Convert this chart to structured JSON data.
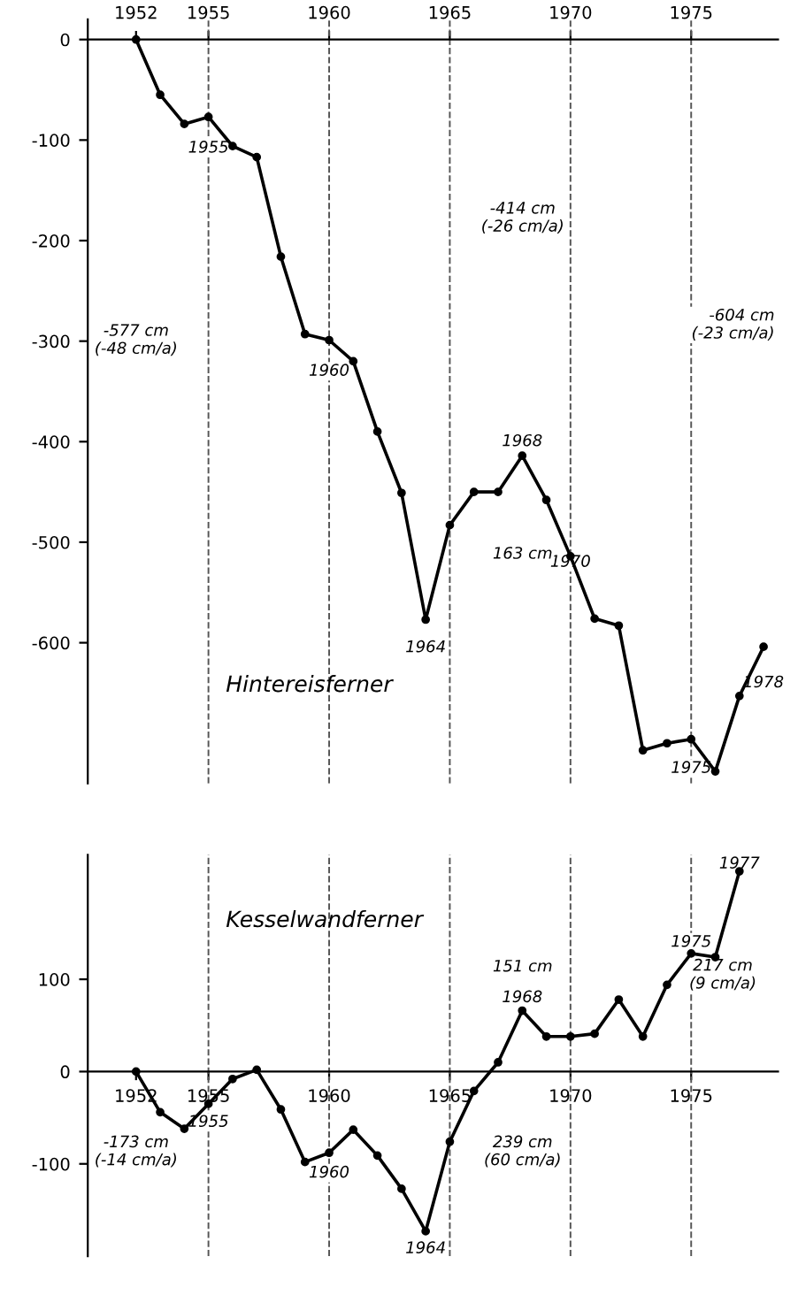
{
  "chart_data": [
    {
      "type": "line",
      "title": "Hintereisferner",
      "x": [
        1952,
        1953,
        1954,
        1955,
        1956,
        1957,
        1958,
        1959,
        1960,
        1961,
        1962,
        1963,
        1964,
        1965,
        1966,
        1967,
        1968,
        1969,
        1970,
        1971,
        1972,
        1973,
        1974,
        1975,
        1976,
        1977,
        1978
      ],
      "series": [
        {
          "color": "#000000",
          "values": [
            0,
            -55,
            -84,
            -77,
            -106,
            -117,
            -216,
            -293,
            -299,
            -320,
            -390,
            -451,
            -577,
            -483,
            -450,
            -450,
            -414,
            -458,
            -514,
            -576,
            -583,
            -707,
            -700,
            -696,
            -728,
            -653,
            -604
          ]
        }
      ],
      "xlim": [
        1950,
        1978.6
      ],
      "ylim": [
        -740,
        20
      ],
      "xticks": [
        1952,
        1955,
        1960,
        1965,
        1970,
        1975
      ],
      "yticks": [
        {
          "value": 0,
          "label": "0"
        },
        {
          "value": -100,
          "label": "-100"
        },
        {
          "value": -200,
          "label": "-200"
        },
        {
          "value": -300,
          "label": "-300"
        },
        {
          "value": -400,
          "label": "-400"
        },
        {
          "value": -500,
          "label": "-500"
        },
        {
          "value": -600,
          "label": "-600"
        }
      ],
      "ref_lines": [
        {
          "axis": "x",
          "value": 1955,
          "line_style": "dashed"
        },
        {
          "axis": "x",
          "value": 1960,
          "line_style": "dashed"
        },
        {
          "axis": "x",
          "value": 1965,
          "line_style": "dashed"
        },
        {
          "axis": "x",
          "value": 1970,
          "line_style": "dashed"
        },
        {
          "axis": "x",
          "value": 1975,
          "line_style": "dashed"
        }
      ],
      "annotations": [
        {
          "text": "1955",
          "x": 1955,
          "y": -108
        },
        {
          "text": "1960",
          "x": 1960,
          "y": -330
        },
        {
          "text": "1964",
          "x": 1964,
          "y": -605
        },
        {
          "text": "1968",
          "x": 1968,
          "y": -400
        },
        {
          "text": "1970",
          "x": 1970,
          "y": -520
        },
        {
          "text": "1975",
          "x": 1975,
          "y": -725
        },
        {
          "text": "1978",
          "x": 1978,
          "y": -640
        },
        "-577 cm\n(-48 cm/a)",
        "-414 cm\n(-26 cm/a)",
        "163 cm",
        "-604 cm\n(-23 cm/a)"
      ],
      "marker": "circle",
      "line_style": "solid",
      "grid": false,
      "legend": false
    },
    {
      "type": "line",
      "title": "Kesselwandferner",
      "x": [
        1952,
        1953,
        1954,
        1955,
        1956,
        1957,
        1958,
        1959,
        1960,
        1961,
        1962,
        1963,
        1964,
        1965,
        1966,
        1967,
        1968,
        1969,
        1970,
        1971,
        1972,
        1973,
        1974,
        1975,
        1976,
        1977
      ],
      "series": [
        {
          "color": "#000000",
          "values": [
            0,
            -44,
            -62,
            -35,
            -8,
            2,
            -41,
            -98,
            -88,
            -63,
            -91,
            -127,
            -173,
            -76,
            -21,
            10,
            66,
            38,
            38,
            41,
            78,
            38,
            94,
            128,
            124,
            217
          ]
        }
      ],
      "xlim": [
        1950,
        1978.6
      ],
      "ylim": [
        -200,
        235
      ],
      "xticks": [
        1952,
        1955,
        1960,
        1965,
        1970,
        1975
      ],
      "yticks": [
        {
          "value": -100,
          "label": "-100"
        },
        {
          "value": 0,
          "label": "0"
        },
        {
          "value": 100,
          "label": "100"
        }
      ],
      "ref_lines": [
        {
          "axis": "x",
          "value": 1955,
          "line_style": "dashed"
        },
        {
          "axis": "x",
          "value": 1960,
          "line_style": "dashed"
        },
        {
          "axis": "x",
          "value": 1965,
          "line_style": "dashed"
        },
        {
          "axis": "x",
          "value": 1970,
          "line_style": "dashed"
        },
        {
          "axis": "x",
          "value": 1975,
          "line_style": "dashed"
        }
      ],
      "annotations": [
        {
          "text": "1955",
          "x": 1955,
          "y": -55
        },
        {
          "text": "1960",
          "x": 1960,
          "y": -110
        },
        {
          "text": "1964",
          "x": 1964,
          "y": -192
        },
        {
          "text": "1968",
          "x": 1968,
          "y": 80
        },
        {
          "text": "1975",
          "x": 1975,
          "y": 140
        },
        {
          "text": "1977",
          "x": 1977,
          "y": 225
        },
        "151 cm",
        "239 cm\n(60 cm/a)",
        "217 cm\n(9 cm/a)",
        "-173 cm\n(-14 cm/a)"
      ],
      "marker": "circle",
      "line_style": "solid",
      "grid": false,
      "legend": false
    }
  ]
}
